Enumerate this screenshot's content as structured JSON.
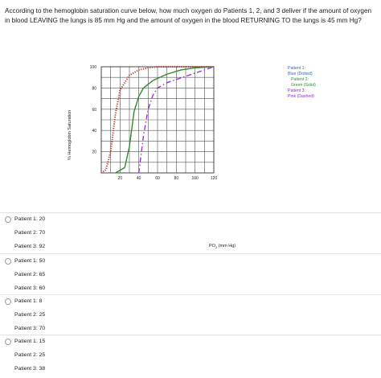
{
  "question": {
    "text": "According to the hemoglobin saturation curve below, how much oxygen do Patients 1, 2, and 3 deliver if the amount of oxygen in blood LEAVING the lungs is 85 mm Hg and the amount of oxygen in the blood RETURNING TO the lungs is 45 mm Hg?"
  },
  "figure": {
    "ylabel": "% Hemoglobin Saturation",
    "xlabel_main": "PO",
    "xlabel_sub": "2",
    "xlabel_unit": "(mm Hg)",
    "legend": {
      "p1_title": "Patient 1:",
      "p1_desc": "Blue (Dotted)",
      "p2_title": "Patient 2:",
      "p2_desc": "Green (Solid)",
      "p3_title": "Patient 3:",
      "p3_desc": "Pink (Dashed)"
    }
  },
  "chart_data": {
    "type": "line",
    "xlabel": "PO2 (mm Hg)",
    "ylabel": "% Hemoglobin Saturation",
    "xlim": [
      0,
      120
    ],
    "ylim": [
      0,
      100
    ],
    "x_ticks": [
      "20",
      "40",
      "60",
      "80",
      "100",
      "120"
    ],
    "y_ticks": [
      "20",
      "40",
      "60",
      "80",
      "100"
    ],
    "grid": true,
    "legend_position": "right",
    "series": [
      {
        "name": "Patient 1: Blue (Dotted)",
        "color": "#c0392b",
        "style": "dotted",
        "x": [
          0,
          5,
          10,
          15,
          20,
          30,
          40,
          50,
          60,
          80,
          100,
          120
        ],
        "y": [
          0,
          3,
          20,
          55,
          78,
          92,
          97,
          99,
          100,
          100,
          100,
          100
        ]
      },
      {
        "name": "Patient 2: Green (Solid)",
        "color": "#2e8b2e",
        "style": "solid",
        "x": [
          15,
          25,
          30,
          35,
          40,
          45,
          55,
          70,
          85,
          100,
          120
        ],
        "y": [
          0,
          5,
          25,
          58,
          72,
          80,
          87,
          93,
          97,
          99,
          100
        ]
      },
      {
        "name": "Patient 3: Pink (Dashed)",
        "color": "#9b30d9",
        "style": "dashed",
        "x": [
          40,
          45,
          50,
          55,
          60,
          70,
          80,
          90,
          100,
          120
        ],
        "y": [
          0,
          35,
          60,
          73,
          80,
          85,
          88,
          91,
          94,
          100
        ]
      }
    ]
  },
  "options": [
    {
      "lines": [
        "Patient 1: 20",
        "Patient 2: 70",
        "Patient 3: 92"
      ]
    },
    {
      "lines": [
        "Patient 1: 50",
        "Patient 2: 65",
        "Patient 3: 60"
      ]
    },
    {
      "lines": [
        "Patient 1: 8",
        "Patient 2: 25",
        "Patient 3: 70"
      ]
    },
    {
      "lines": [
        "Patient 1: 15",
        "Patient 2: 25",
        "Patient 3: 38"
      ]
    }
  ]
}
